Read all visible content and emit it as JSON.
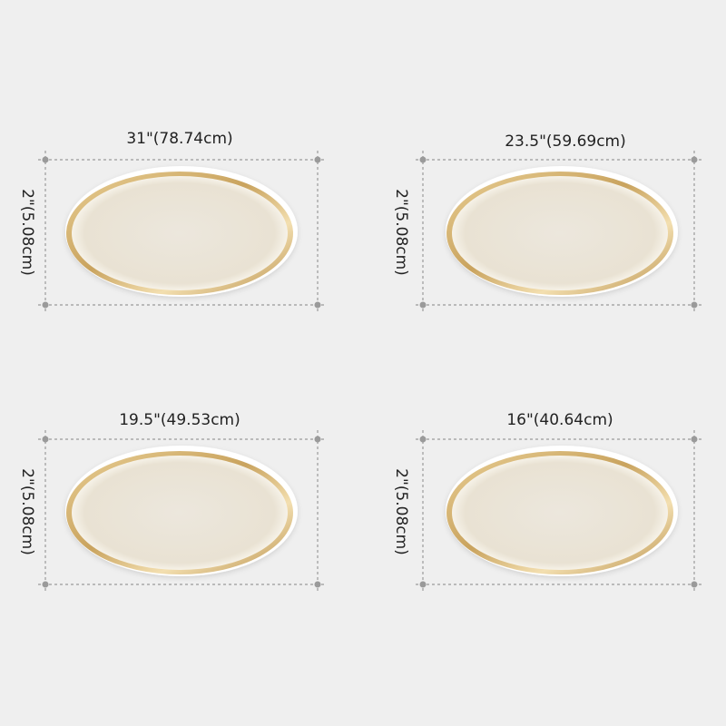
{
  "panels": [
    {
      "width": "31\"(78.74cm)",
      "height": "2\"(5.08cm)"
    },
    {
      "width": "23.5\"(59.69cm)",
      "height": "2\"(5.08cm)"
    },
    {
      "width": "19.5\"(49.53cm)",
      "height": "2\"(5.08cm)"
    },
    {
      "width": "16\"(40.64cm)",
      "height": "2\"(5.08cm)"
    }
  ]
}
